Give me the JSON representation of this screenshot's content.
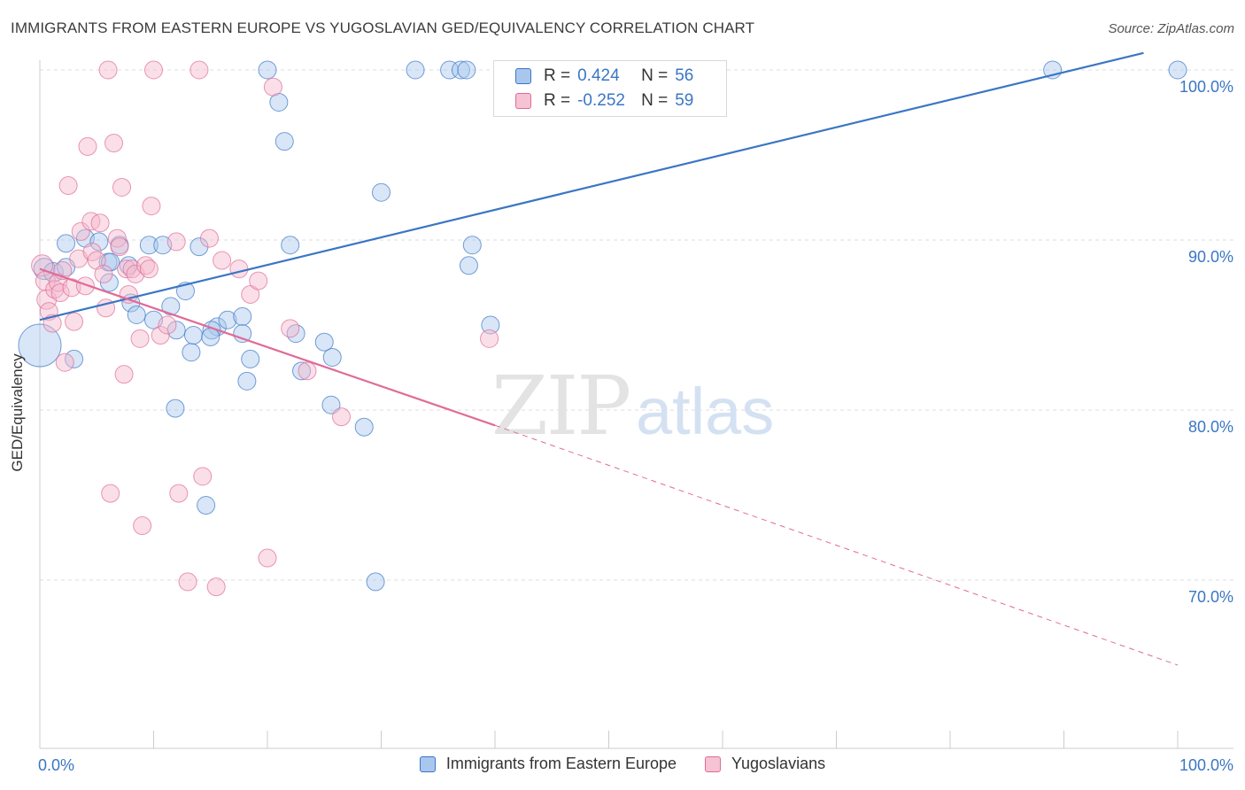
{
  "title": "IMMIGRANTS FROM EASTERN EUROPE VS YUGOSLAVIAN GED/EQUIVALENCY CORRELATION CHART",
  "source": "Source: ZipAtlas.com",
  "colors": {
    "blue": "#3a76c4",
    "blue_fill": "#a9c7ee",
    "pink": "#e06b97",
    "pink_fill": "#f5b9cc",
    "grid": "#dddddd",
    "axis_text": "#3a76c4"
  },
  "legend": {
    "r_label": "R =",
    "n_label": "N =",
    "series1": {
      "r": "0.424",
      "n": "56"
    },
    "series2": {
      "r": "-0.252",
      "n": "59"
    }
  },
  "watermark": {
    "zip": "ZIP",
    "atlas": "atlas"
  },
  "chart_data": {
    "type": "scatter",
    "ylabel": "GED/Equivalency",
    "xlim": [
      0,
      100
    ],
    "ylim": [
      60,
      103
    ],
    "x_ticks": [
      "0.0%",
      "100.0%"
    ],
    "y_ticks": [
      {
        "value": 70,
        "label": "70.0%"
      },
      {
        "value": 80,
        "label": "80.0%"
      },
      {
        "value": 90,
        "label": "90.0%"
      },
      {
        "value": 100,
        "label": "100.0%"
      }
    ],
    "grid": true,
    "legend_position": "bottom",
    "series": [
      {
        "name": "Immigrants from Eastern Europe",
        "color": "#3a76c4",
        "r": 0.424,
        "n": 56,
        "trend": {
          "x0": 0,
          "y0": 85.3,
          "x1": 97,
          "y1": 101.0,
          "dashed_to": null
        },
        "points": [
          [
            0,
            83.8,
            24
          ],
          [
            0.4,
            88.3,
            12
          ],
          [
            1.2,
            88.1,
            11
          ],
          [
            2.3,
            89.8,
            10
          ],
          [
            2.3,
            88.4,
            10
          ],
          [
            4,
            90.1,
            10
          ],
          [
            6,
            88.7,
            10
          ],
          [
            5.2,
            89.9,
            10
          ],
          [
            3,
            83,
            10
          ],
          [
            6.2,
            88.7,
            10
          ],
          [
            6.1,
            87.5,
            10
          ],
          [
            7.8,
            88.5,
            10
          ],
          [
            7,
            89.7,
            10
          ],
          [
            8,
            86.3,
            10
          ],
          [
            9.6,
            89.7,
            10
          ],
          [
            8.5,
            85.6,
            10
          ],
          [
            10.8,
            89.7,
            10
          ],
          [
            10,
            85.3,
            10
          ],
          [
            11.5,
            86.1,
            10
          ],
          [
            12,
            84.7,
            10
          ],
          [
            11.9,
            80.1,
            10
          ],
          [
            12.8,
            87,
            10
          ],
          [
            14,
            89.6,
            10
          ],
          [
            13.3,
            83.4,
            10
          ],
          [
            13.5,
            84.4,
            10
          ],
          [
            14.6,
            74.4,
            10
          ],
          [
            15.6,
            84.9,
            10
          ],
          [
            15.1,
            84.7,
            10
          ],
          [
            15,
            84.3,
            10
          ],
          [
            16.5,
            85.3,
            10
          ],
          [
            17.8,
            85.5,
            10
          ],
          [
            17.8,
            84.5,
            10
          ],
          [
            18.5,
            83,
            10
          ],
          [
            18.2,
            81.7,
            10
          ],
          [
            20,
            100,
            10
          ],
          [
            21,
            98.1,
            10
          ],
          [
            21.5,
            95.8,
            10
          ],
          [
            22,
            89.7,
            10
          ],
          [
            22.5,
            84.5,
            10
          ],
          [
            23,
            82.3,
            10
          ],
          [
            25,
            84,
            10
          ],
          [
            25.7,
            83.1,
            10
          ],
          [
            25.6,
            80.3,
            10
          ],
          [
            28.5,
            79,
            10
          ],
          [
            30,
            92.8,
            10
          ],
          [
            29.5,
            69.9,
            10
          ],
          [
            33,
            100,
            10
          ],
          [
            36,
            100,
            10
          ],
          [
            37,
            100,
            10
          ],
          [
            37.5,
            100,
            10
          ],
          [
            38,
            89.7,
            10
          ],
          [
            37.7,
            88.5,
            10
          ],
          [
            39.6,
            85,
            10
          ],
          [
            49.5,
            100,
            10
          ],
          [
            89,
            100,
            10
          ],
          [
            100,
            100,
            10
          ]
        ]
      },
      {
        "name": "Yugoslavians",
        "color": "#e06b97",
        "r": -0.252,
        "n": 59,
        "trend": {
          "x0": 0,
          "y0": 88.3,
          "x1": 40,
          "y1": 79.1,
          "dashed_x1": 100,
          "dashed_y1": 65.0
        },
        "points": [
          [
            0.2,
            88.5,
            12
          ],
          [
            0.5,
            87.6,
            11
          ],
          [
            0.6,
            86.5,
            11
          ],
          [
            0.8,
            85.8,
            10
          ],
          [
            1.1,
            85.1,
            10
          ],
          [
            1.3,
            87.1,
            10
          ],
          [
            1.6,
            87.5,
            10
          ],
          [
            1.8,
            86.9,
            10
          ],
          [
            2,
            88.2,
            10
          ],
          [
            2.2,
            82.8,
            10
          ],
          [
            2.5,
            93.2,
            10
          ],
          [
            2.8,
            87.2,
            10
          ],
          [
            3,
            85.2,
            10
          ],
          [
            3.4,
            88.9,
            10
          ],
          [
            3.6,
            90.5,
            10
          ],
          [
            4,
            87.3,
            10
          ],
          [
            4.2,
            95.5,
            10
          ],
          [
            4.5,
            91.1,
            10
          ],
          [
            4.6,
            89.3,
            10
          ],
          [
            5,
            88.8,
            10
          ],
          [
            5.3,
            91,
            10
          ],
          [
            5.6,
            88,
            10
          ],
          [
            5.8,
            86,
            10
          ],
          [
            6,
            100,
            10
          ],
          [
            6.2,
            75.1,
            10
          ],
          [
            6.5,
            95.7,
            10
          ],
          [
            6.8,
            90.1,
            10
          ],
          [
            7,
            89.6,
            10
          ],
          [
            7.2,
            93.1,
            10
          ],
          [
            7.6,
            88.3,
            10
          ],
          [
            7.4,
            82.1,
            10
          ],
          [
            7.8,
            86.8,
            10
          ],
          [
            8.1,
            88.3,
            10
          ],
          [
            8.4,
            88,
            10
          ],
          [
            8.8,
            84.2,
            10
          ],
          [
            9,
            73.2,
            10
          ],
          [
            9.3,
            88.5,
            10
          ],
          [
            9.6,
            88.3,
            10
          ],
          [
            9.8,
            92,
            10
          ],
          [
            10,
            100,
            10
          ],
          [
            10.6,
            84.4,
            10
          ],
          [
            11.2,
            85,
            10
          ],
          [
            12,
            89.9,
            10
          ],
          [
            12.2,
            75.1,
            10
          ],
          [
            13,
            69.9,
            10
          ],
          [
            14,
            100,
            10
          ],
          [
            14.3,
            76.1,
            10
          ],
          [
            14.9,
            90.1,
            10
          ],
          [
            15.5,
            69.6,
            10
          ],
          [
            16,
            88.8,
            10
          ],
          [
            17.5,
            88.3,
            10
          ],
          [
            18.5,
            86.8,
            10
          ],
          [
            19.2,
            87.6,
            10
          ],
          [
            20,
            71.3,
            10
          ],
          [
            20.5,
            99,
            10
          ],
          [
            22,
            84.8,
            10
          ],
          [
            23.5,
            82.3,
            10
          ],
          [
            26.5,
            79.6,
            10
          ],
          [
            39.5,
            84.2,
            10
          ]
        ]
      }
    ]
  }
}
